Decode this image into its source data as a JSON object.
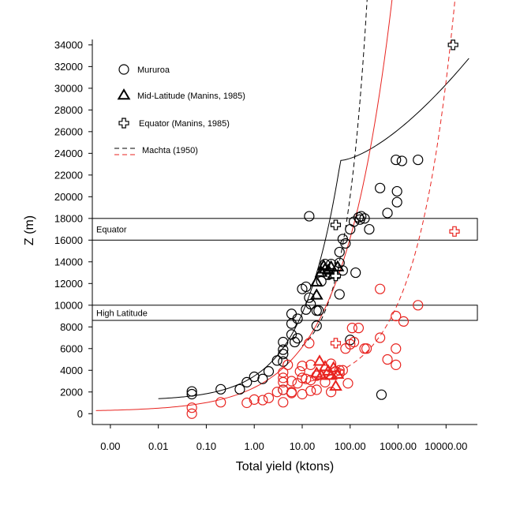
{
  "chart_data": {
    "type": "scatter",
    "xlabel": "Total yield (ktons)",
    "ylabel": "Z (m)",
    "x_scale": "log",
    "xlim": [
      0.00042,
      45000
    ],
    "ylim": [
      -1000,
      34500
    ],
    "x_ticks": [
      {
        "value": 0.001,
        "label": "0.00"
      },
      {
        "value": 0.01,
        "label": "0.01"
      },
      {
        "value": 0.1,
        "label": "0.10"
      },
      {
        "value": 1,
        "label": "1.00"
      },
      {
        "value": 10,
        "label": "10.00"
      },
      {
        "value": 100,
        "label": "100.00"
      },
      {
        "value": 1000,
        "label": "1000.00"
      },
      {
        "value": 10000,
        "label": "10000.00"
      }
    ],
    "y_ticks": [
      0,
      2000,
      4000,
      6000,
      8000,
      10000,
      12000,
      14000,
      16000,
      18000,
      20000,
      22000,
      24000,
      26000,
      28000,
      30000,
      32000,
      34000
    ],
    "bands": [
      {
        "label": "Equator",
        "y0": 16000,
        "y1": 18000
      },
      {
        "label": "High Latitude",
        "y0": 8600,
        "y1": 10000
      }
    ],
    "legend": [
      {
        "symbol": "circle",
        "label": "Mururoa"
      },
      {
        "symbol": "triangle",
        "label": "Mid-Latitude (Manins, 1985)"
      },
      {
        "symbol": "cross",
        "label": "Equator (Manins, 1985)"
      },
      {
        "symbol": "dash",
        "label": "Machta (1950)"
      }
    ],
    "colors": {
      "black_series": "#000000",
      "red_series": "#e8231f"
    },
    "series": [
      {
        "color": "black",
        "symbol": "circle",
        "points": [
          [
            0.05,
            1800
          ],
          [
            0.05,
            2050
          ],
          [
            0.2,
            2250
          ],
          [
            0.5,
            2250
          ],
          [
            0.7,
            2900
          ],
          [
            1,
            3400
          ],
          [
            1.5,
            3200
          ],
          [
            2,
            3900
          ],
          [
            3,
            4900
          ],
          [
            4,
            5500
          ],
          [
            4,
            4800
          ],
          [
            4,
            2200
          ],
          [
            4,
            5900
          ],
          [
            4,
            6600
          ],
          [
            6,
            9200
          ],
          [
            6,
            8300
          ],
          [
            6,
            7300
          ],
          [
            7,
            6600
          ],
          [
            8,
            6950
          ],
          [
            8,
            8750
          ],
          [
            10,
            11500
          ],
          [
            12,
            11700
          ],
          [
            12,
            9600
          ],
          [
            14,
            10700
          ],
          [
            15,
            10100
          ],
          [
            14,
            18200
          ],
          [
            20,
            9500
          ],
          [
            22,
            9500
          ],
          [
            20,
            8100
          ],
          [
            25,
            12200
          ],
          [
            30,
            13800
          ],
          [
            35,
            12800
          ],
          [
            40,
            13800
          ],
          [
            60,
            13900
          ],
          [
            60,
            11000
          ],
          [
            60,
            14900
          ],
          [
            70,
            16100
          ],
          [
            70,
            13200
          ],
          [
            80,
            15700
          ],
          [
            100,
            6800
          ],
          [
            100,
            17000
          ],
          [
            120,
            17700
          ],
          [
            130,
            13000
          ],
          [
            150,
            18100
          ],
          [
            160,
            17900
          ],
          [
            170,
            18200
          ],
          [
            200,
            18000
          ],
          [
            250,
            17000
          ],
          [
            420,
            20800
          ],
          [
            450,
            1750
          ],
          [
            600,
            18500
          ],
          [
            900,
            23400
          ],
          [
            950,
            20500
          ],
          [
            950,
            19500
          ],
          [
            1200,
            23300
          ],
          [
            2600,
            23400
          ]
        ]
      },
      {
        "color": "black",
        "symbol": "triangle",
        "points": [
          [
            20,
            12100
          ],
          [
            20,
            10900
          ],
          [
            25,
            13000
          ],
          [
            28,
            13600
          ],
          [
            30,
            13300
          ],
          [
            35,
            13200
          ],
          [
            40,
            13500
          ],
          [
            45,
            12800
          ],
          [
            55,
            13500
          ]
        ]
      },
      {
        "color": "black",
        "symbol": "cross",
        "points": [
          [
            50,
            17400
          ],
          [
            50,
            12700
          ],
          [
            14000,
            34000
          ]
        ]
      },
      {
        "color": "red",
        "symbol": "circle",
        "points": [
          [
            0.05,
            0
          ],
          [
            0.05,
            550
          ],
          [
            0.2,
            1050
          ],
          [
            0.7,
            1000
          ],
          [
            1,
            1300
          ],
          [
            1.5,
            1250
          ],
          [
            2,
            1450
          ],
          [
            3,
            2000
          ],
          [
            4,
            1050
          ],
          [
            4,
            2200
          ],
          [
            4,
            2900
          ],
          [
            4,
            3300
          ],
          [
            4,
            3800
          ],
          [
            5,
            4500
          ],
          [
            6,
            1900
          ],
          [
            6,
            2000
          ],
          [
            6,
            3000
          ],
          [
            8,
            2800
          ],
          [
            9,
            3900
          ],
          [
            10,
            1800
          ],
          [
            10,
            3300
          ],
          [
            10,
            4400
          ],
          [
            12,
            3200
          ],
          [
            14,
            6500
          ],
          [
            15,
            3100
          ],
          [
            15,
            2100
          ],
          [
            15,
            4500
          ],
          [
            20,
            2200
          ],
          [
            20,
            3500
          ],
          [
            30,
            2900
          ],
          [
            35,
            3600
          ],
          [
            40,
            4600
          ],
          [
            40,
            2000
          ],
          [
            50,
            3900
          ],
          [
            60,
            3700
          ],
          [
            60,
            4000
          ],
          [
            70,
            4000
          ],
          [
            80,
            6000
          ],
          [
            90,
            2800
          ],
          [
            100,
            6400
          ],
          [
            110,
            7900
          ],
          [
            120,
            6600
          ],
          [
            150,
            7900
          ],
          [
            200,
            6000
          ],
          [
            220,
            6000
          ],
          [
            420,
            11500
          ],
          [
            420,
            7000
          ],
          [
            600,
            5000
          ],
          [
            900,
            4500
          ],
          [
            900,
            6000
          ],
          [
            900,
            9000
          ],
          [
            1300,
            8500
          ],
          [
            2600,
            10000
          ]
        ]
      },
      {
        "color": "red",
        "symbol": "triangle",
        "points": [
          [
            20,
            3700
          ],
          [
            23,
            4800
          ],
          [
            25,
            3500
          ],
          [
            30,
            4300
          ],
          [
            35,
            3900
          ],
          [
            40,
            3500
          ],
          [
            45,
            4200
          ],
          [
            50,
            2500
          ],
          [
            55,
            3600
          ]
        ]
      },
      {
        "color": "red",
        "symbol": "cross",
        "points": [
          [
            50,
            6500
          ],
          [
            15000,
            16800
          ]
        ]
      }
    ],
    "curves": [
      {
        "color": "black",
        "style": "solid",
        "x_range": [
          0.01,
          30000
        ]
      },
      {
        "color": "black",
        "style": "dashed",
        "x_range": [
          10,
          35000
        ]
      },
      {
        "color": "red",
        "style": "solid",
        "x_range": [
          0.0005,
          45000
        ]
      },
      {
        "color": "red",
        "style": "dashed",
        "x_range": [
          10,
          40000
        ]
      }
    ]
  }
}
